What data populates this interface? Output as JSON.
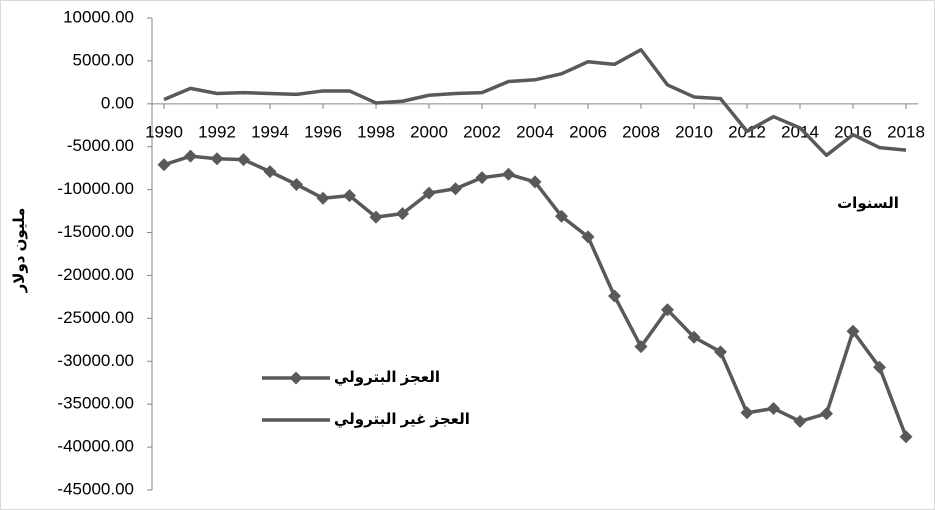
{
  "chart_data": {
    "type": "line",
    "y_label": "مليون دولار",
    "x_label": "السنوات",
    "x": [
      1990,
      1991,
      1992,
      1993,
      1994,
      1995,
      1996,
      1997,
      1998,
      1999,
      2000,
      2001,
      2002,
      2003,
      2004,
      2005,
      2006,
      2007,
      2008,
      2009,
      2010,
      2011,
      2012,
      2013,
      2014,
      2015,
      2016,
      2017,
      2018
    ],
    "xlim": [
      1990,
      2018
    ],
    "xticks": [
      1990,
      1992,
      1994,
      1996,
      1998,
      2000,
      2002,
      2004,
      2006,
      2008,
      2010,
      2012,
      2014,
      2016,
      2018
    ],
    "ylim": [
      -45000,
      10000
    ],
    "yticks": [
      {
        "value": 10000,
        "label": "10000.00"
      },
      {
        "value": 5000,
        "label": "5000.00"
      },
      {
        "value": 0,
        "label": "0.00"
      },
      {
        "value": -5000,
        "label": "-5000.00"
      },
      {
        "value": -10000,
        "label": "-10000.00"
      },
      {
        "value": -15000,
        "label": "-15000.00"
      },
      {
        "value": -20000,
        "label": "-20000.00"
      },
      {
        "value": -25000,
        "label": "-25000.00"
      },
      {
        "value": -30000,
        "label": "-30000.00"
      },
      {
        "value": -35000,
        "label": "-35000.00"
      },
      {
        "value": -40000,
        "label": "-40000.00"
      },
      {
        "value": -45000,
        "label": "-45000.00"
      }
    ],
    "legend": "lower left",
    "series": [
      {
        "name": "العجز البترولي",
        "color": "#595959",
        "marker": "diamond",
        "values": [
          -7100,
          -6100,
          -6400,
          -6500,
          -7900,
          -9400,
          -11000,
          -10700,
          -13200,
          -12800,
          -10400,
          -9900,
          -8600,
          -8200,
          -9100,
          -13100,
          -15500,
          -22400,
          -28300,
          -24000,
          -27200,
          -28900,
          -36000,
          -35500,
          -37000,
          -36100,
          -26500,
          -30700,
          -38800
        ]
      },
      {
        "name": "العجز غير البترولي",
        "color": "#595959",
        "values": [
          500,
          1800,
          1200,
          1300,
          1200,
          1100,
          1500,
          1500,
          100,
          300,
          1000,
          1200,
          1300,
          2600,
          2800,
          3500,
          4900,
          4600,
          6300,
          2200,
          800,
          600,
          -3200,
          -1500,
          -2800,
          -6000,
          -3600,
          -5100,
          -5400
        ]
      }
    ]
  }
}
